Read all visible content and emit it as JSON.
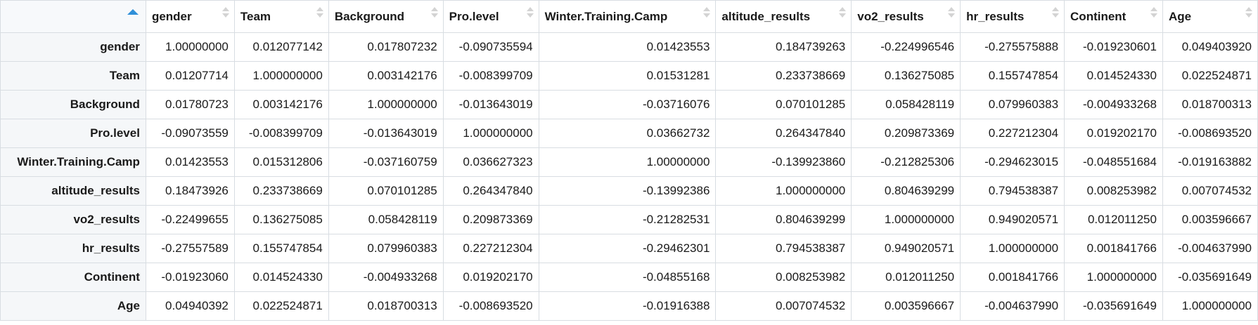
{
  "table": {
    "corner_sort_icon": "sort-ascending-icon",
    "sort_indicator_color": "#2f8fd8",
    "columns": [
      "gender",
      "Team",
      "Background",
      "Pro.level",
      "Winter.Training.Camp",
      "altitude_results",
      "vo2_results",
      "hr_results",
      "Continent",
      "Age"
    ],
    "rows": [
      {
        "name": "gender",
        "values": [
          "1.00000000",
          "0.012077142",
          "0.017807232",
          "-0.090735594",
          "0.01423553",
          "0.184739263",
          "-0.224996546",
          "-0.275575888",
          "-0.019230601",
          "0.049403920"
        ]
      },
      {
        "name": "Team",
        "values": [
          "0.01207714",
          "1.000000000",
          "0.003142176",
          "-0.008399709",
          "0.01531281",
          "0.233738669",
          "0.136275085",
          "0.155747854",
          "0.014524330",
          "0.022524871"
        ]
      },
      {
        "name": "Background",
        "values": [
          "0.01780723",
          "0.003142176",
          "1.000000000",
          "-0.013643019",
          "-0.03716076",
          "0.070101285",
          "0.058428119",
          "0.079960383",
          "-0.004933268",
          "0.018700313"
        ]
      },
      {
        "name": "Pro.level",
        "values": [
          "-0.09073559",
          "-0.008399709",
          "-0.013643019",
          "1.000000000",
          "0.03662732",
          "0.264347840",
          "0.209873369",
          "0.227212304",
          "0.019202170",
          "-0.008693520"
        ]
      },
      {
        "name": "Winter.Training.Camp",
        "values": [
          "0.01423553",
          "0.015312806",
          "-0.037160759",
          "0.036627323",
          "1.00000000",
          "-0.139923860",
          "-0.212825306",
          "-0.294623015",
          "-0.048551684",
          "-0.019163882"
        ]
      },
      {
        "name": "altitude_results",
        "values": [
          "0.18473926",
          "0.233738669",
          "0.070101285",
          "0.264347840",
          "-0.13992386",
          "1.000000000",
          "0.804639299",
          "0.794538387",
          "0.008253982",
          "0.007074532"
        ]
      },
      {
        "name": "vo2_results",
        "values": [
          "-0.22499655",
          "0.136275085",
          "0.058428119",
          "0.209873369",
          "-0.21282531",
          "0.804639299",
          "1.000000000",
          "0.949020571",
          "0.012011250",
          "0.003596667"
        ]
      },
      {
        "name": "hr_results",
        "values": [
          "-0.27557589",
          "0.155747854",
          "0.079960383",
          "0.227212304",
          "-0.29462301",
          "0.794538387",
          "0.949020571",
          "1.000000000",
          "0.001841766",
          "-0.004637990"
        ]
      },
      {
        "name": "Continent",
        "values": [
          "-0.01923060",
          "0.014524330",
          "-0.004933268",
          "0.019202170",
          "-0.04855168",
          "0.008253982",
          "0.012011250",
          "0.001841766",
          "1.000000000",
          "-0.035691649"
        ]
      },
      {
        "name": "Age",
        "values": [
          "0.04940392",
          "0.022524871",
          "0.018700313",
          "-0.008693520",
          "-0.01916388",
          "0.007074532",
          "0.003596667",
          "-0.004637990",
          "-0.035691649",
          "1.000000000"
        ]
      }
    ]
  }
}
